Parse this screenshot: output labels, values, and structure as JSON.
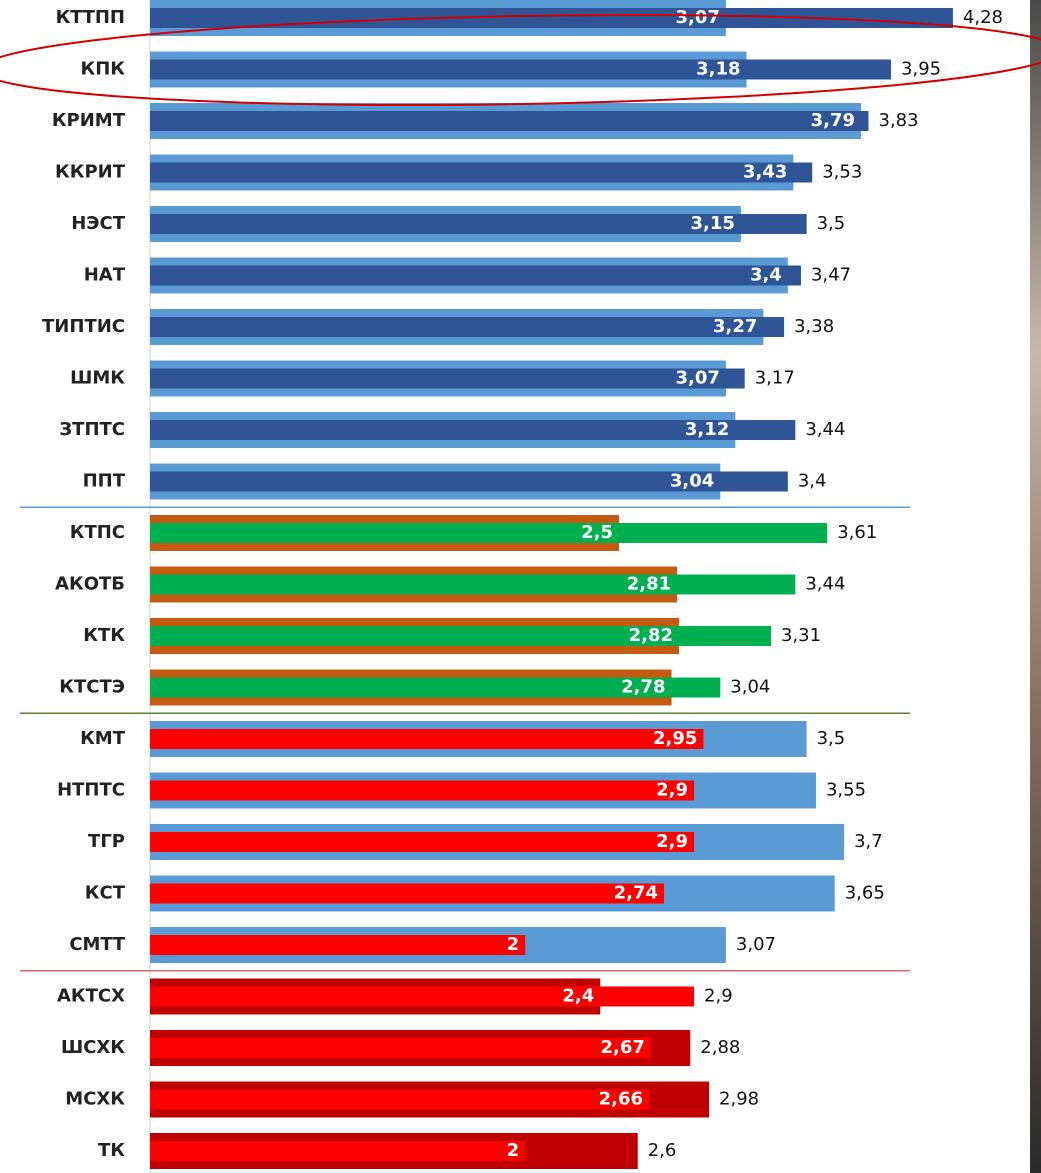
{
  "chart_data": [
    {
      "type": "bar",
      "xlim": [
        0,
        5
      ],
      "categories": [
        "КТТПП",
        "КПК",
        "КРИМТ",
        "ККРИТ",
        "НЭСТ",
        "НАТ",
        "ТИПТИС",
        "ШМК",
        "ЗТПТС",
        "ППТ"
      ],
      "separator_color": "#5b9bd5",
      "series": [
        {
          "color": "#5b9bd5",
          "values": [
            3.07,
            3.18,
            3.79,
            3.43,
            3.15,
            3.4,
            3.27,
            3.07,
            3.12,
            3.04
          ],
          "value_labels": [
            "3,07",
            "3,18",
            "3,79",
            "3,43",
            "3,15",
            "3,4",
            "3,27",
            "3,07",
            "3,12",
            "3,04"
          ]
        },
        {
          "color": "#2f5597",
          "values": [
            4.28,
            3.95,
            3.83,
            3.53,
            3.5,
            3.47,
            3.38,
            3.17,
            3.44,
            3.4
          ],
          "value_labels": [
            "4,28",
            "3,95",
            "3,83",
            "3,53",
            "3,5",
            "3,47",
            "3,38",
            "3,17",
            "3,44",
            "3,4"
          ]
        }
      ]
    },
    {
      "type": "bar",
      "xlim": [
        0,
        5
      ],
      "categories": [
        "КТПС",
        "АКОТБ",
        "КТК",
        "КТСТЭ"
      ],
      "separator_color": "#548235",
      "series": [
        {
          "color": "#c55a11",
          "values": [
            2.5,
            2.81,
            2.82,
            2.78
          ],
          "value_labels": [
            "2,5",
            "2,81",
            "2,82",
            "2,78"
          ]
        },
        {
          "color": "#00b050",
          "values": [
            3.61,
            3.44,
            3.31,
            3.04
          ],
          "value_labels": [
            "3,61",
            "3,44",
            "3,31",
            "3,04"
          ]
        }
      ]
    },
    {
      "type": "bar",
      "xlim": [
        0,
        5
      ],
      "categories": [
        "КМТ",
        "НТПТС",
        "ТГР",
        "КСТ",
        "СМТТ"
      ],
      "separator_color": "#e06666",
      "series": [
        {
          "color": "#5b9bd5",
          "values": [
            3.5,
            3.55,
            3.7,
            3.65,
            3.07
          ],
          "value_labels": [
            "3,5",
            "3,55",
            "3,7",
            "3,65",
            "3,07"
          ]
        },
        {
          "color": "#ff0000",
          "values": [
            2.95,
            2.9,
            2.9,
            2.74,
            2
          ],
          "value_labels": [
            "2,95",
            "2,9",
            "2,9",
            "2,74",
            "2"
          ]
        }
      ]
    },
    {
      "type": "bar",
      "xlim": [
        0,
        5
      ],
      "categories": [
        "АКТСХ",
        "ШСХК",
        "МСХК",
        "ТК"
      ],
      "series": [
        {
          "color": "#c00000",
          "values": [
            2.4,
            2.88,
            2.98,
            2.6
          ],
          "value_labels": [
            "2,4",
            "2,88",
            "2,98",
            "2,6"
          ]
        },
        {
          "color": "#ff0000",
          "values": [
            2.9,
            2.67,
            2.66,
            2
          ],
          "value_labels": [
            "2,9",
            "2,67",
            "2,66",
            "2"
          ]
        }
      ]
    }
  ]
}
